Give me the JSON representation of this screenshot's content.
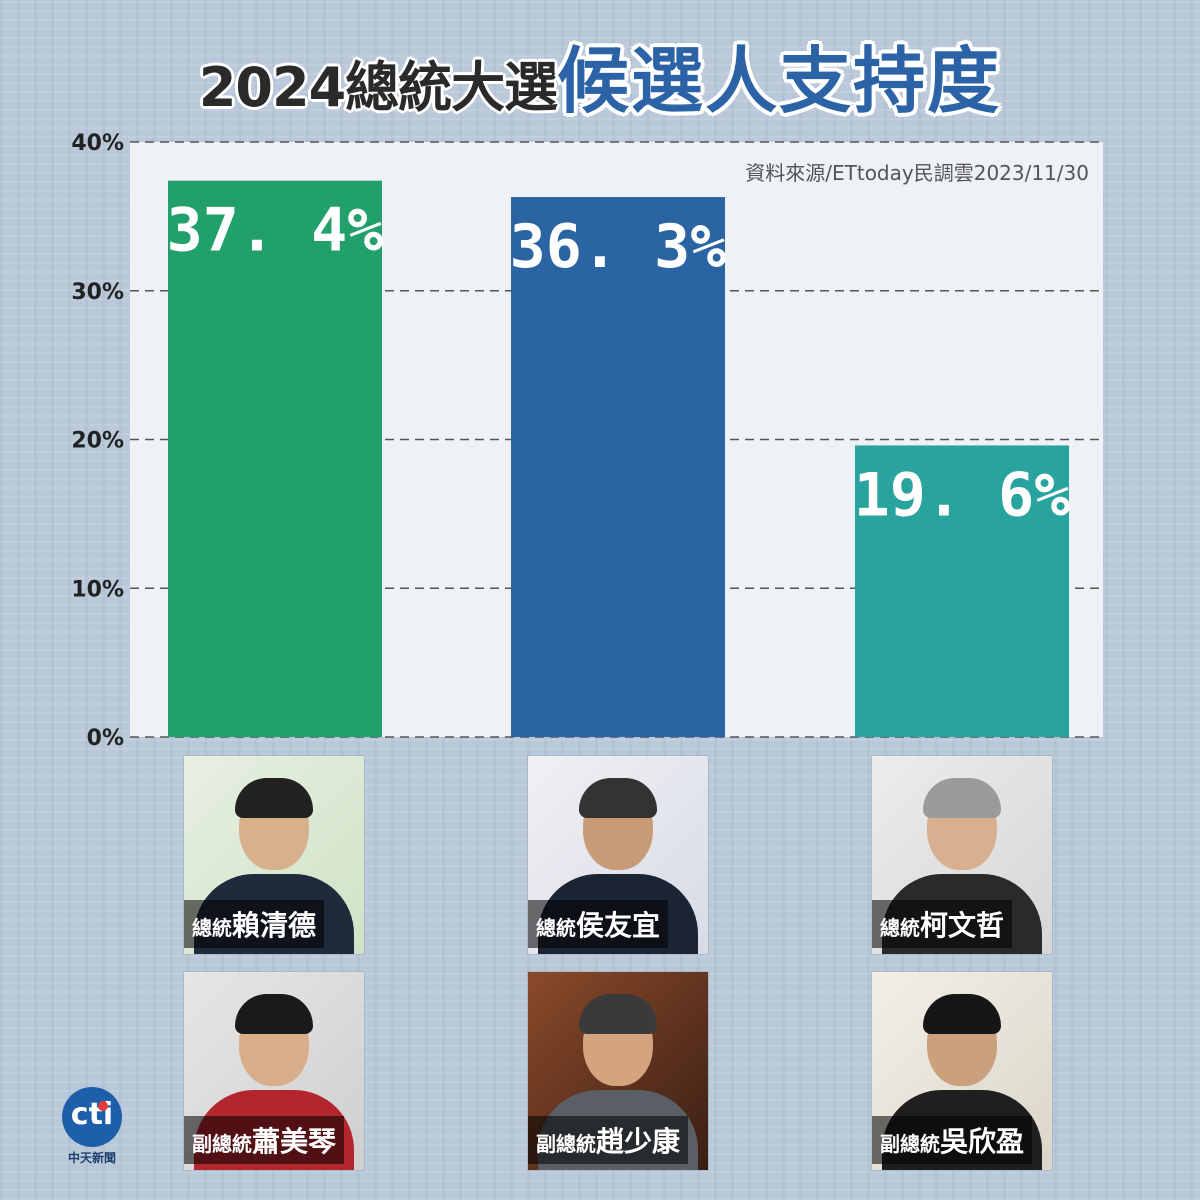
{
  "title": {
    "part1": "2024總統大選",
    "part2": "候選人支持度"
  },
  "source_note": "資料來源/ETtoday民調雲2023/11/30",
  "chart_data": {
    "type": "bar",
    "title": "2024總統大選 候選人支持度",
    "categories": [
      "賴清德",
      "侯友宜",
      "柯文哲"
    ],
    "values": [
      37.4,
      36.3,
      19.6
    ],
    "value_labels": [
      "37. 4%",
      "36. 3%",
      "19. 6%"
    ],
    "colors": [
      "#22a06b",
      "#2a64a3",
      "#29a39d"
    ],
    "ylim": [
      0,
      40
    ],
    "yticks": [
      0,
      10,
      20,
      30,
      40
    ],
    "ytick_labels": [
      "0%",
      "10%",
      "20%",
      "30%",
      "40%"
    ],
    "grid": "horizontal dashed",
    "plot_background": "#eef1f5"
  },
  "candidates": [
    {
      "president_role": "總統",
      "president_name": "賴清德",
      "vp_role": "副總統",
      "vp_name": "蕭美琴"
    },
    {
      "president_role": "總統",
      "president_name": "侯友宜",
      "vp_role": "副總統",
      "vp_name": "趙少康"
    },
    {
      "president_role": "總統",
      "president_name": "柯文哲",
      "vp_role": "副總統",
      "vp_name": "吳欣盈"
    }
  ],
  "logo": {
    "text": "cti",
    "sub": "中天新聞"
  }
}
